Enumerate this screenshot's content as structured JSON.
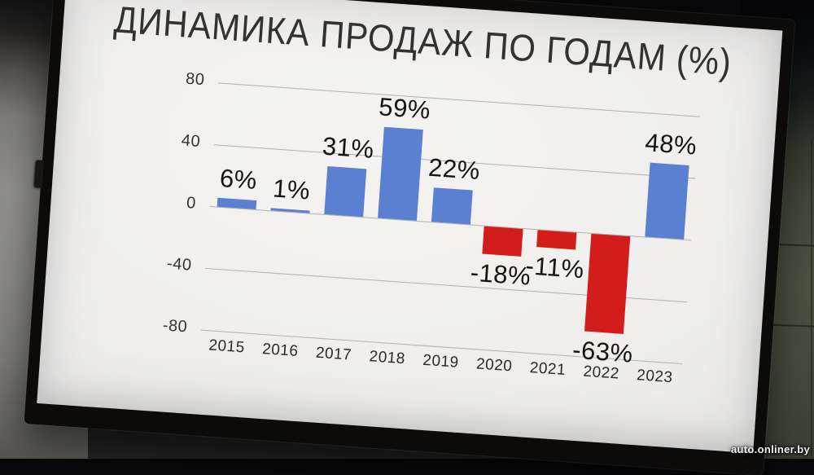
{
  "window": {
    "watermark": "auto.onliner.by"
  },
  "slide": {
    "title": "ДИНАМИКА ПРОДАЖ ПО ГОДАМ (%)"
  },
  "chart_data": {
    "type": "bar",
    "title": "ДИНАМИКА ПРОДАЖ ПО ГОДАМ (%)",
    "categories": [
      "2015",
      "2016",
      "2017",
      "2018",
      "2019",
      "2020",
      "2021",
      "2022",
      "2023"
    ],
    "values": [
      6,
      1,
      31,
      59,
      22,
      -18,
      -11,
      -63,
      48
    ],
    "value_labels": [
      "6%",
      "1%",
      "31%",
      "59%",
      "22%",
      "-18%",
      "-11%",
      "-63%",
      "48%"
    ],
    "yticks": [
      80,
      40,
      0,
      -40,
      -80
    ],
    "ylim": [
      -80,
      80
    ],
    "xlabel": "",
    "ylabel": "",
    "grid": true,
    "legend_position": "none",
    "bar_color_positive": "#5b7fd1",
    "bar_color_negative": "#d31c1c",
    "label_color": "#151413",
    "value_label_position": "outside-end"
  }
}
